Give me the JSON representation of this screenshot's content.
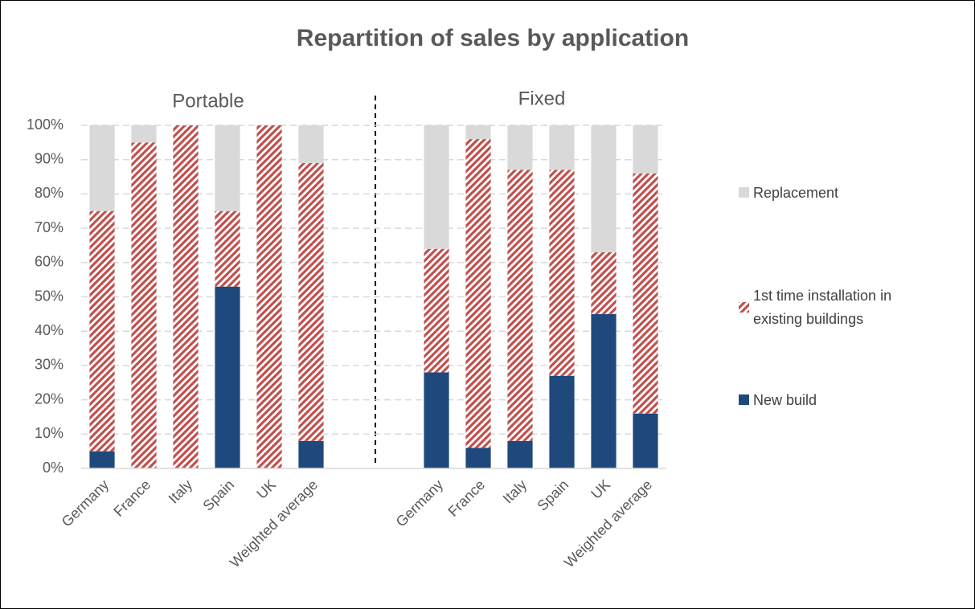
{
  "chart_data": {
    "type": "stacked_bar",
    "title": "Repartition of sales by application",
    "annotations": [
      "Portable",
      "Fixed"
    ],
    "categories": [
      "Germany",
      "France",
      "Italy",
      "Spain",
      "UK",
      "Weighted average",
      null,
      null,
      "Germany",
      "France",
      "Italy",
      "Spain",
      "UK",
      "Weighted average"
    ],
    "series": [
      {
        "name": "New build",
        "color": "#1f497d",
        "values": [
          5,
          0,
          0,
          53,
          0,
          8,
          null,
          null,
          28,
          6,
          8,
          27,
          45,
          16
        ]
      },
      {
        "name": "1st time installation in existing buildings",
        "color": "#c0504d",
        "pattern": "diagonal-hatch",
        "values": [
          70,
          95,
          100,
          22,
          100,
          81,
          null,
          null,
          36,
          90,
          79,
          60,
          18,
          70
        ]
      },
      {
        "name": "Replacement",
        "color": "#d9d9d9",
        "values": [
          25,
          5,
          0,
          25,
          0,
          11,
          null,
          null,
          36,
          4,
          13,
          13,
          37,
          14
        ]
      }
    ],
    "ylim": [
      0,
      100
    ],
    "yticks": [
      {
        "value": 0,
        "label": "0%"
      },
      {
        "value": 10,
        "label": "10%"
      },
      {
        "value": 20,
        "label": "20%"
      },
      {
        "value": 30,
        "label": "30%"
      },
      {
        "value": 40,
        "label": "40%"
      },
      {
        "value": 50,
        "label": "50%"
      },
      {
        "value": 60,
        "label": "60%"
      },
      {
        "value": 70,
        "label": "70%"
      },
      {
        "value": 80,
        "label": "80%"
      },
      {
        "value": 90,
        "label": "90%"
      },
      {
        "value": 100,
        "label": "100%"
      }
    ],
    "grid": true,
    "legend": "right"
  }
}
